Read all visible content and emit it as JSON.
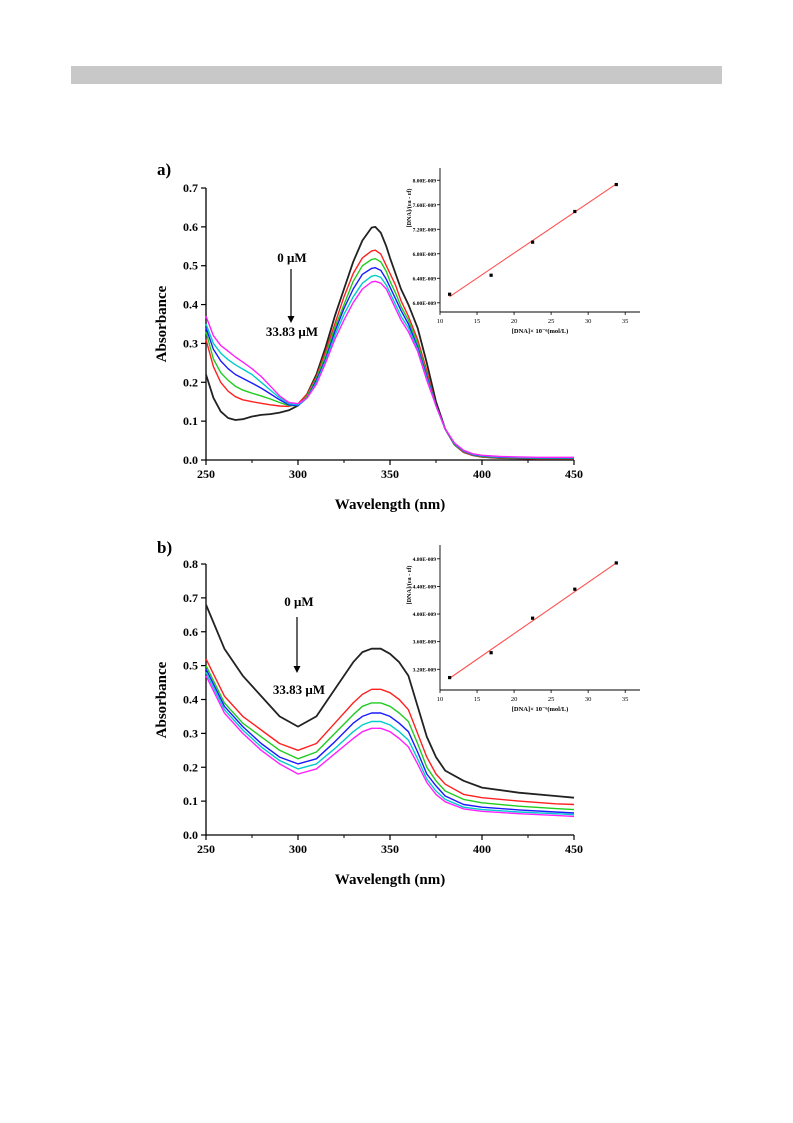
{
  "colors": {
    "series": [
      "#222222",
      "#ff2020",
      "#20cc20",
      "#1a1aff",
      "#00cccc",
      "#ff20ff"
    ],
    "fit": "#ff5050"
  },
  "chart_data": [
    {
      "id": "a",
      "panel_label": "a)",
      "type": "line",
      "xlabel": "Wavelength (nm)",
      "ylabel": "Absorbance",
      "xlim": [
        250,
        450
      ],
      "ylim": [
        0,
        0.7
      ],
      "xticks": [
        "250",
        "300",
        "350",
        "400",
        "450"
      ],
      "yticks": [
        "0.0",
        "0.1",
        "0.2",
        "0.3",
        "0.4",
        "0.5",
        "0.6",
        "0.7"
      ],
      "annotation_top": "0 μM",
      "annotation_bottom": "33.83 μM",
      "series": [
        {
          "x": [
            250,
            254,
            258,
            262,
            266,
            270,
            275,
            280,
            285,
            290,
            295,
            300,
            305,
            310,
            315,
            320,
            325,
            330,
            335,
            340,
            342,
            345,
            348,
            350,
            353,
            356,
            360,
            365,
            370,
            375,
            380,
            385,
            390,
            395,
            400,
            410,
            420,
            430,
            440,
            450
          ],
          "y": [
            0.22,
            0.16,
            0.125,
            0.108,
            0.103,
            0.105,
            0.112,
            0.116,
            0.118,
            0.122,
            0.128,
            0.14,
            0.17,
            0.22,
            0.29,
            0.37,
            0.44,
            0.51,
            0.565,
            0.598,
            0.6,
            0.585,
            0.55,
            0.52,
            0.48,
            0.44,
            0.4,
            0.34,
            0.25,
            0.15,
            0.08,
            0.04,
            0.02,
            0.012,
            0.008,
            0.005,
            0.004,
            0.003,
            0.003,
            0.003
          ]
        },
        {
          "x": [
            250,
            254,
            258,
            262,
            266,
            270,
            275,
            280,
            285,
            290,
            295,
            300,
            305,
            310,
            315,
            320,
            325,
            330,
            335,
            340,
            342,
            345,
            348,
            350,
            353,
            356,
            360,
            365,
            370,
            375,
            380,
            385,
            390,
            395,
            400,
            410,
            420,
            430,
            440,
            450
          ],
          "y": [
            0.31,
            0.24,
            0.2,
            0.177,
            0.163,
            0.155,
            0.15,
            0.146,
            0.142,
            0.139,
            0.138,
            0.145,
            0.17,
            0.215,
            0.28,
            0.35,
            0.42,
            0.48,
            0.52,
            0.538,
            0.54,
            0.53,
            0.5,
            0.48,
            0.45,
            0.41,
            0.37,
            0.31,
            0.23,
            0.14,
            0.08,
            0.04,
            0.02,
            0.012,
            0.008,
            0.005,
            0.004,
            0.003,
            0.003,
            0.003
          ]
        },
        {
          "x": [
            250,
            254,
            258,
            262,
            266,
            270,
            275,
            280,
            285,
            290,
            295,
            300,
            305,
            310,
            315,
            320,
            325,
            330,
            335,
            340,
            342,
            345,
            348,
            350,
            353,
            356,
            360,
            365,
            370,
            375,
            380,
            385,
            390,
            395,
            400,
            410,
            420,
            430,
            440,
            450
          ],
          "y": [
            0.33,
            0.26,
            0.225,
            0.205,
            0.19,
            0.18,
            0.172,
            0.165,
            0.157,
            0.148,
            0.14,
            0.14,
            0.165,
            0.21,
            0.27,
            0.34,
            0.4,
            0.46,
            0.5,
            0.516,
            0.518,
            0.51,
            0.485,
            0.46,
            0.43,
            0.395,
            0.36,
            0.3,
            0.22,
            0.14,
            0.08,
            0.04,
            0.022,
            0.013,
            0.009,
            0.006,
            0.005,
            0.004,
            0.004,
            0.004
          ]
        },
        {
          "x": [
            250,
            254,
            258,
            262,
            266,
            270,
            275,
            280,
            285,
            290,
            295,
            300,
            305,
            310,
            315,
            320,
            325,
            330,
            335,
            340,
            342,
            345,
            348,
            350,
            353,
            356,
            360,
            365,
            370,
            375,
            380,
            385,
            390,
            395,
            400,
            410,
            420,
            430,
            440,
            450
          ],
          "y": [
            0.34,
            0.285,
            0.255,
            0.235,
            0.22,
            0.21,
            0.198,
            0.185,
            0.17,
            0.155,
            0.142,
            0.14,
            0.16,
            0.205,
            0.26,
            0.33,
            0.39,
            0.44,
            0.478,
            0.493,
            0.495,
            0.488,
            0.465,
            0.445,
            0.415,
            0.385,
            0.35,
            0.29,
            0.215,
            0.14,
            0.08,
            0.042,
            0.023,
            0.014,
            0.01,
            0.007,
            0.006,
            0.005,
            0.005,
            0.005
          ]
        },
        {
          "x": [
            250,
            254,
            258,
            262,
            266,
            270,
            275,
            280,
            285,
            290,
            295,
            300,
            305,
            310,
            315,
            320,
            325,
            330,
            335,
            340,
            342,
            345,
            348,
            350,
            353,
            356,
            360,
            365,
            370,
            375,
            380,
            385,
            390,
            395,
            400,
            410,
            420,
            430,
            440,
            450
          ],
          "y": [
            0.35,
            0.3,
            0.275,
            0.258,
            0.245,
            0.234,
            0.22,
            0.2,
            0.18,
            0.16,
            0.145,
            0.142,
            0.16,
            0.2,
            0.255,
            0.32,
            0.375,
            0.42,
            0.455,
            0.473,
            0.475,
            0.47,
            0.45,
            0.43,
            0.4,
            0.37,
            0.34,
            0.285,
            0.21,
            0.14,
            0.08,
            0.043,
            0.024,
            0.015,
            0.011,
            0.008,
            0.007,
            0.006,
            0.006,
            0.006
          ]
        },
        {
          "x": [
            250,
            254,
            258,
            262,
            266,
            270,
            275,
            280,
            285,
            290,
            295,
            300,
            305,
            310,
            315,
            320,
            325,
            330,
            335,
            340,
            342,
            345,
            348,
            350,
            353,
            356,
            360,
            365,
            370,
            375,
            380,
            385,
            390,
            395,
            400,
            410,
            420,
            430,
            440,
            450
          ],
          "y": [
            0.37,
            0.32,
            0.295,
            0.28,
            0.265,
            0.252,
            0.235,
            0.215,
            0.19,
            0.165,
            0.148,
            0.145,
            0.16,
            0.195,
            0.25,
            0.31,
            0.36,
            0.405,
            0.44,
            0.458,
            0.46,
            0.455,
            0.44,
            0.42,
            0.39,
            0.36,
            0.33,
            0.28,
            0.205,
            0.14,
            0.08,
            0.044,
            0.025,
            0.016,
            0.012,
            0.009,
            0.008,
            0.007,
            0.007,
            0.007
          ]
        }
      ],
      "inset": {
        "xlabel": "[DNA]× 10⁻⁶(mol/L)",
        "ylabel": "[DNA]/(εa - εf)",
        "xlim": [
          10,
          37
        ],
        "ylim": [
          5.85,
          8.2
        ],
        "xticks": [
          "10",
          "15",
          "20",
          "25",
          "30",
          "35"
        ],
        "ytick_labels": [
          "6.00E-009",
          "6.40E-009",
          "6.80E-009",
          "7.20E-009",
          "7.60E-009",
          "8.00E-009"
        ],
        "ytick_values": [
          6.0,
          6.4,
          6.8,
          7.2,
          7.6,
          8.0
        ],
        "points": {
          "x": [
            11.3,
            16.9,
            22.5,
            28.2,
            33.8
          ],
          "y": [
            6.14,
            6.45,
            6.99,
            7.49,
            7.93
          ]
        },
        "fit": {
          "x": [
            11.3,
            33.8
          ],
          "y": [
            6.1,
            7.94
          ]
        }
      }
    },
    {
      "id": "b",
      "panel_label": "b)",
      "type": "line",
      "xlabel": "Wavelength (nm)",
      "ylabel": "Absorbance",
      "xlim": [
        250,
        450
      ],
      "ylim": [
        0,
        0.8
      ],
      "xticks": [
        "250",
        "300",
        "350",
        "400",
        "450"
      ],
      "yticks": [
        "0.0",
        "0.1",
        "0.2",
        "0.3",
        "0.4",
        "0.5",
        "0.6",
        "0.7",
        "0.8"
      ],
      "annotation_top": "0 μM",
      "annotation_bottom": "33.83 μM",
      "series": [
        {
          "x": [
            250,
            260,
            270,
            280,
            290,
            300,
            310,
            320,
            330,
            335,
            340,
            345,
            350,
            355,
            360,
            365,
            370,
            375,
            380,
            390,
            400,
            420,
            440,
            450
          ],
          "y": [
            0.68,
            0.55,
            0.47,
            0.41,
            0.35,
            0.32,
            0.35,
            0.43,
            0.51,
            0.54,
            0.55,
            0.55,
            0.535,
            0.51,
            0.47,
            0.38,
            0.29,
            0.23,
            0.19,
            0.16,
            0.14,
            0.125,
            0.115,
            0.11
          ]
        },
        {
          "x": [
            250,
            260,
            270,
            280,
            290,
            300,
            310,
            320,
            330,
            335,
            340,
            345,
            350,
            355,
            360,
            365,
            370,
            375,
            380,
            390,
            400,
            420,
            440,
            450
          ],
          "y": [
            0.52,
            0.41,
            0.35,
            0.31,
            0.27,
            0.25,
            0.27,
            0.33,
            0.39,
            0.415,
            0.43,
            0.43,
            0.42,
            0.4,
            0.37,
            0.3,
            0.23,
            0.18,
            0.15,
            0.12,
            0.11,
            0.1,
            0.092,
            0.09
          ]
        },
        {
          "x": [
            250,
            260,
            270,
            280,
            290,
            300,
            310,
            320,
            330,
            335,
            340,
            345,
            350,
            355,
            360,
            365,
            370,
            375,
            380,
            390,
            400,
            420,
            440,
            450
          ],
          "y": [
            0.5,
            0.39,
            0.33,
            0.29,
            0.25,
            0.225,
            0.245,
            0.3,
            0.355,
            0.38,
            0.39,
            0.39,
            0.38,
            0.36,
            0.335,
            0.27,
            0.2,
            0.16,
            0.13,
            0.105,
            0.095,
            0.085,
            0.078,
            0.075
          ]
        },
        {
          "x": [
            250,
            260,
            270,
            280,
            290,
            300,
            310,
            320,
            330,
            335,
            340,
            345,
            350,
            355,
            360,
            365,
            370,
            375,
            380,
            390,
            400,
            420,
            440,
            450
          ],
          "y": [
            0.49,
            0.38,
            0.32,
            0.27,
            0.23,
            0.21,
            0.225,
            0.275,
            0.33,
            0.35,
            0.36,
            0.36,
            0.35,
            0.33,
            0.305,
            0.245,
            0.18,
            0.145,
            0.115,
            0.09,
            0.082,
            0.074,
            0.068,
            0.065
          ]
        },
        {
          "x": [
            250,
            260,
            270,
            280,
            290,
            300,
            310,
            320,
            330,
            335,
            340,
            345,
            350,
            355,
            360,
            365,
            370,
            375,
            380,
            390,
            400,
            420,
            440,
            450
          ],
          "y": [
            0.48,
            0.37,
            0.31,
            0.26,
            0.22,
            0.195,
            0.21,
            0.255,
            0.305,
            0.325,
            0.335,
            0.335,
            0.325,
            0.305,
            0.28,
            0.225,
            0.165,
            0.13,
            0.105,
            0.082,
            0.075,
            0.068,
            0.063,
            0.06
          ]
        },
        {
          "x": [
            250,
            260,
            270,
            280,
            290,
            300,
            310,
            320,
            330,
            335,
            340,
            345,
            350,
            355,
            360,
            365,
            370,
            375,
            380,
            390,
            400,
            420,
            440,
            450
          ],
          "y": [
            0.47,
            0.36,
            0.3,
            0.25,
            0.21,
            0.18,
            0.195,
            0.24,
            0.285,
            0.305,
            0.315,
            0.315,
            0.305,
            0.285,
            0.26,
            0.21,
            0.155,
            0.12,
            0.098,
            0.077,
            0.07,
            0.063,
            0.058,
            0.055
          ]
        }
      ],
      "inset": {
        "xlabel": "[DNA]× 10⁻⁶(mol/L)",
        "ylabel": "[DNA]/(εa - εf)",
        "xlim": [
          10,
          37
        ],
        "ylim": [
          2.9,
          5.0
        ],
        "xticks": [
          "10",
          "15",
          "20",
          "25",
          "30",
          "35"
        ],
        "ytick_labels": [
          "3.20E-009",
          "3.60E-009",
          "4.00E-009",
          "4.40E-009",
          "4.80E-009"
        ],
        "ytick_values": [
          3.2,
          3.6,
          4.0,
          4.4,
          4.8
        ],
        "points": {
          "x": [
            11.3,
            16.9,
            22.5,
            28.2,
            33.8
          ],
          "y": [
            3.08,
            3.44,
            3.94,
            4.36,
            4.74
          ]
        },
        "fit": {
          "x": [
            11.3,
            33.8
          ],
          "y": [
            3.07,
            4.74
          ]
        }
      }
    }
  ]
}
